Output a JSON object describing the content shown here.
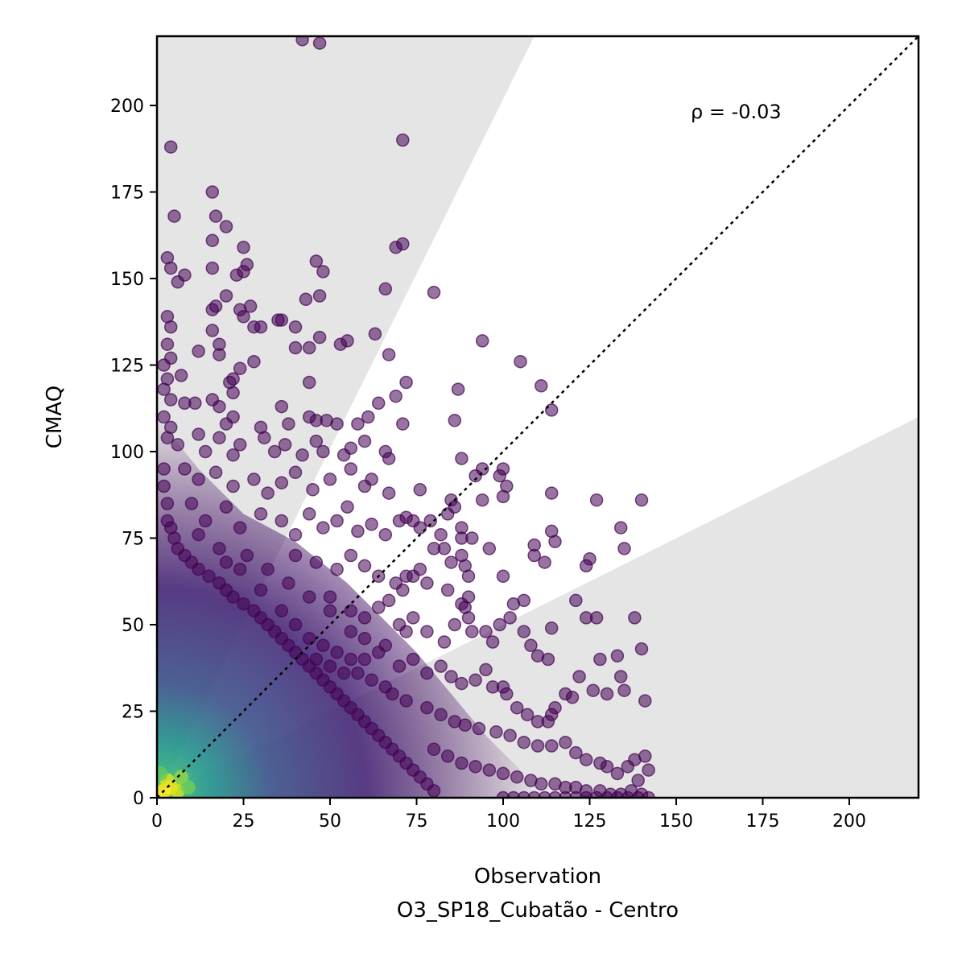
{
  "chart_data": {
    "type": "scatter",
    "title": "",
    "xlabel": "Observation",
    "xlabel_sub": "O3_SP18_Cubatão - Centro",
    "ylabel": "CMAQ",
    "xlim": [
      0,
      220
    ],
    "ylim": [
      0,
      220
    ],
    "x_ticks": [
      0,
      25,
      50,
      75,
      100,
      125,
      150,
      175,
      200
    ],
    "y_ticks": [
      0,
      25,
      50,
      75,
      100,
      125,
      150,
      175,
      200
    ],
    "x_tick_labels": [
      "0",
      "25",
      "50",
      "75",
      "100",
      "125",
      "150",
      "175",
      "200"
    ],
    "y_tick_labels": [
      "0",
      "25",
      "50",
      "75",
      "100",
      "125",
      "150",
      "175",
      "200"
    ],
    "annotation": "ρ = -0.03",
    "identity_line": {
      "style": "dotted",
      "color": "#000000"
    },
    "shaded_regions": {
      "upper_wedge_edge_point": [
        109,
        220
      ],
      "lower_wedge_edge_point": [
        220,
        110
      ],
      "color": "#e5e5e5"
    },
    "colors": {
      "sparse_point": "#440154",
      "dense_core": "#fde725",
      "shade": "#e5e5e5"
    },
    "points": [
      [
        42,
        219
      ],
      [
        47,
        218
      ],
      [
        4,
        188
      ],
      [
        71,
        190
      ],
      [
        5,
        168
      ],
      [
        16,
        175
      ],
      [
        17,
        168
      ],
      [
        20,
        165
      ],
      [
        3,
        156
      ],
      [
        4,
        153
      ],
      [
        6,
        149
      ],
      [
        8,
        151
      ],
      [
        16,
        161
      ],
      [
        16,
        153
      ],
      [
        25,
        152
      ],
      [
        25,
        159
      ],
      [
        26,
        154
      ],
      [
        23,
        151
      ],
      [
        46,
        155
      ],
      [
        48,
        152
      ],
      [
        47,
        145
      ],
      [
        69,
        159
      ],
      [
        71,
        160
      ],
      [
        66,
        147
      ],
      [
        80,
        146
      ],
      [
        3,
        139
      ],
      [
        4,
        136
      ],
      [
        16,
        141
      ],
      [
        17,
        142
      ],
      [
        20,
        145
      ],
      [
        24,
        141
      ],
      [
        25,
        139
      ],
      [
        27,
        142
      ],
      [
        28,
        136
      ],
      [
        30,
        136
      ],
      [
        35,
        138
      ],
      [
        36,
        138
      ],
      [
        43,
        144
      ],
      [
        40,
        136
      ],
      [
        44,
        130
      ],
      [
        40,
        130
      ],
      [
        47,
        133
      ],
      [
        53,
        131
      ],
      [
        55,
        132
      ],
      [
        63,
        134
      ],
      [
        94,
        132
      ],
      [
        3,
        131
      ],
      [
        4,
        127
      ],
      [
        7,
        122
      ],
      [
        12,
        129
      ],
      [
        16,
        135
      ],
      [
        18,
        131
      ],
      [
        18,
        128
      ],
      [
        22,
        121
      ],
      [
        24,
        124
      ],
      [
        21,
        120
      ],
      [
        22,
        117
      ],
      [
        28,
        126
      ],
      [
        44,
        120
      ],
      [
        67,
        128
      ],
      [
        72,
        120
      ],
      [
        105,
        126
      ],
      [
        111,
        119
      ],
      [
        87,
        118
      ],
      [
        114,
        112
      ],
      [
        69,
        116
      ],
      [
        64,
        114
      ],
      [
        2,
        125
      ],
      [
        3,
        121
      ],
      [
        2,
        118
      ],
      [
        4,
        115
      ],
      [
        2,
        110
      ],
      [
        4,
        107
      ],
      [
        8,
        114
      ],
      [
        11,
        114
      ],
      [
        16,
        115
      ],
      [
        18,
        113
      ],
      [
        20,
        108
      ],
      [
        22,
        110
      ],
      [
        30,
        107
      ],
      [
        36,
        113
      ],
      [
        38,
        108
      ],
      [
        44,
        110
      ],
      [
        46,
        109
      ],
      [
        49,
        109
      ],
      [
        52,
        108
      ],
      [
        58,
        108
      ],
      [
        61,
        110
      ],
      [
        71,
        108
      ],
      [
        86,
        109
      ],
      [
        3,
        104
      ],
      [
        6,
        102
      ],
      [
        12,
        105
      ],
      [
        14,
        100
      ],
      [
        18,
        104
      ],
      [
        22,
        99
      ],
      [
        24,
        102
      ],
      [
        31,
        104
      ],
      [
        34,
        100
      ],
      [
        37,
        102
      ],
      [
        42,
        99
      ],
      [
        46,
        103
      ],
      [
        48,
        100
      ],
      [
        54,
        99
      ],
      [
        56,
        101
      ],
      [
        60,
        103
      ],
      [
        66,
        100
      ],
      [
        67,
        98
      ],
      [
        88,
        98
      ],
      [
        94,
        95
      ],
      [
        100,
        95
      ],
      [
        92,
        93
      ],
      [
        99,
        93
      ],
      [
        101,
        90
      ],
      [
        100,
        87
      ],
      [
        8,
        95
      ],
      [
        12,
        92
      ],
      [
        17,
        94
      ],
      [
        22,
        90
      ],
      [
        28,
        92
      ],
      [
        32,
        88
      ],
      [
        36,
        91
      ],
      [
        40,
        94
      ],
      [
        45,
        89
      ],
      [
        50,
        92
      ],
      [
        56,
        95
      ],
      [
        60,
        90
      ],
      [
        62,
        92
      ],
      [
        67,
        88
      ],
      [
        76,
        89
      ],
      [
        85,
        86
      ],
      [
        86,
        84
      ],
      [
        84,
        82
      ],
      [
        88,
        78
      ],
      [
        94,
        86
      ],
      [
        88,
        75
      ],
      [
        10,
        85
      ],
      [
        14,
        80
      ],
      [
        20,
        84
      ],
      [
        24,
        78
      ],
      [
        30,
        82
      ],
      [
        36,
        80
      ],
      [
        40,
        76
      ],
      [
        44,
        82
      ],
      [
        48,
        78
      ],
      [
        52,
        80
      ],
      [
        55,
        84
      ],
      [
        58,
        77
      ],
      [
        62,
        79
      ],
      [
        66,
        76
      ],
      [
        70,
        80
      ],
      [
        72,
        81
      ],
      [
        74,
        80
      ],
      [
        76,
        78
      ],
      [
        79,
        80
      ],
      [
        82,
        76
      ],
      [
        80,
        72
      ],
      [
        83,
        72
      ],
      [
        91,
        75
      ],
      [
        96,
        72
      ],
      [
        109,
        73
      ],
      [
        109,
        70
      ],
      [
        112,
        68
      ],
      [
        114,
        77
      ],
      [
        115,
        74
      ],
      [
        125,
        69
      ],
      [
        124,
        67
      ],
      [
        134,
        78
      ],
      [
        135,
        72
      ],
      [
        140,
        86
      ],
      [
        127,
        86
      ],
      [
        114,
        88
      ],
      [
        40,
        70
      ],
      [
        46,
        68
      ],
      [
        52,
        66
      ],
      [
        56,
        70
      ],
      [
        60,
        67
      ],
      [
        64,
        64
      ],
      [
        69,
        62
      ],
      [
        72,
        64
      ],
      [
        74,
        64
      ],
      [
        71,
        60
      ],
      [
        76,
        66
      ],
      [
        78,
        62
      ],
      [
        85,
        68
      ],
      [
        88,
        70
      ],
      [
        89,
        67
      ],
      [
        90,
        64
      ],
      [
        100,
        64
      ],
      [
        88,
        56
      ],
      [
        84,
        60
      ],
      [
        90,
        58
      ],
      [
        50,
        58
      ],
      [
        56,
        54
      ],
      [
        60,
        52
      ],
      [
        64,
        55
      ],
      [
        67,
        57
      ],
      [
        70,
        50
      ],
      [
        72,
        48
      ],
      [
        74,
        52
      ],
      [
        78,
        48
      ],
      [
        83,
        45
      ],
      [
        86,
        50
      ],
      [
        89,
        55
      ],
      [
        90,
        52
      ],
      [
        91,
        48
      ],
      [
        95,
        48
      ],
      [
        97,
        45
      ],
      [
        99,
        50
      ],
      [
        102,
        52
      ],
      [
        103,
        56
      ],
      [
        106,
        57
      ],
      [
        110,
        41
      ],
      [
        113,
        40
      ],
      [
        108,
        44
      ],
      [
        106,
        48
      ],
      [
        114,
        49
      ],
      [
        121,
        57
      ],
      [
        124,
        52
      ],
      [
        127,
        52
      ],
      [
        128,
        40
      ],
      [
        133,
        41
      ],
      [
        134,
        35
      ],
      [
        138,
        52
      ],
      [
        140,
        43
      ],
      [
        60,
        40
      ],
      [
        64,
        42
      ],
      [
        70,
        38
      ],
      [
        74,
        40
      ],
      [
        78,
        36
      ],
      [
        82,
        38
      ],
      [
        85,
        35
      ],
      [
        88,
        33
      ],
      [
        92,
        34
      ],
      [
        95,
        37
      ],
      [
        97,
        32
      ],
      [
        100,
        32
      ],
      [
        101,
        30
      ],
      [
        104,
        26
      ],
      [
        107,
        24
      ],
      [
        110,
        22
      ],
      [
        113,
        22
      ],
      [
        115,
        26
      ],
      [
        118,
        30
      ],
      [
        120,
        29
      ],
      [
        122,
        35
      ],
      [
        126,
        31
      ],
      [
        130,
        30
      ],
      [
        135,
        31
      ],
      [
        141,
        28
      ],
      [
        114,
        24
      ],
      [
        72,
        28
      ],
      [
        78,
        26
      ],
      [
        82,
        24
      ],
      [
        86,
        22
      ],
      [
        89,
        21
      ],
      [
        93,
        20
      ],
      [
        98,
        19
      ],
      [
        102,
        18
      ],
      [
        106,
        16
      ],
      [
        110,
        15
      ],
      [
        114,
        15
      ],
      [
        118,
        16
      ],
      [
        121,
        13
      ],
      [
        124,
        11
      ],
      [
        128,
        10
      ],
      [
        130,
        9
      ],
      [
        133,
        7
      ],
      [
        136,
        9
      ],
      [
        138,
        11
      ],
      [
        141,
        12
      ],
      [
        142,
        8
      ],
      [
        139,
        5
      ],
      [
        80,
        14
      ],
      [
        84,
        12
      ],
      [
        88,
        10
      ],
      [
        92,
        9
      ],
      [
        96,
        8
      ],
      [
        100,
        7
      ],
      [
        104,
        6
      ],
      [
        108,
        5
      ],
      [
        111,
        4
      ],
      [
        115,
        4
      ],
      [
        118,
        3
      ],
      [
        121,
        3
      ],
      [
        124,
        2
      ],
      [
        128,
        2
      ],
      [
        131,
        1
      ],
      [
        134,
        1
      ],
      [
        137,
        2
      ],
      [
        140,
        1
      ],
      [
        142,
        0
      ],
      [
        139,
        0
      ],
      [
        136,
        0
      ],
      [
        133,
        0
      ],
      [
        130,
        0
      ],
      [
        127,
        0
      ],
      [
        124,
        0
      ],
      [
        121,
        0
      ],
      [
        118,
        0
      ],
      [
        115,
        0
      ],
      [
        112,
        0
      ],
      [
        109,
        0
      ],
      [
        106,
        0
      ],
      [
        103,
        0
      ],
      [
        100,
        0
      ],
      [
        2,
        95
      ],
      [
        2,
        90
      ],
      [
        3,
        85
      ],
      [
        3,
        80
      ],
      [
        4,
        78
      ],
      [
        5,
        75
      ],
      [
        6,
        72
      ],
      [
        8,
        70
      ],
      [
        10,
        68
      ],
      [
        12,
        66
      ],
      [
        15,
        64
      ],
      [
        18,
        62
      ],
      [
        20,
        60
      ],
      [
        22,
        58
      ],
      [
        25,
        56
      ],
      [
        28,
        54
      ],
      [
        30,
        52
      ],
      [
        32,
        50
      ],
      [
        34,
        48
      ],
      [
        36,
        46
      ],
      [
        38,
        44
      ],
      [
        40,
        42
      ],
      [
        42,
        40
      ],
      [
        44,
        38
      ],
      [
        46,
        36
      ],
      [
        48,
        34
      ],
      [
        50,
        32
      ],
      [
        52,
        30
      ],
      [
        54,
        28
      ],
      [
        56,
        26
      ],
      [
        58,
        24
      ],
      [
        60,
        22
      ],
      [
        62,
        20
      ],
      [
        64,
        18
      ],
      [
        66,
        16
      ],
      [
        68,
        14
      ],
      [
        70,
        12
      ],
      [
        72,
        10
      ],
      [
        74,
        8
      ],
      [
        76,
        6
      ],
      [
        78,
        4
      ],
      [
        80,
        2
      ],
      [
        12,
        76
      ],
      [
        18,
        72
      ],
      [
        26,
        70
      ],
      [
        32,
        66
      ],
      [
        38,
        62
      ],
      [
        44,
        58
      ],
      [
        50,
        54
      ],
      [
        56,
        48
      ],
      [
        60,
        46
      ],
      [
        66,
        44
      ],
      [
        44,
        46
      ],
      [
        48,
        44
      ],
      [
        52,
        42
      ],
      [
        56,
        40
      ],
      [
        40,
        50
      ],
      [
        36,
        54
      ],
      [
        30,
        60
      ],
      [
        24,
        66
      ],
      [
        20,
        68
      ],
      [
        58,
        36
      ],
      [
        62,
        34
      ],
      [
        66,
        32
      ],
      [
        68,
        30
      ],
      [
        54,
        36
      ],
      [
        50,
        38
      ],
      [
        46,
        40
      ]
    ],
    "density_note": "dense overlapping cloud near origin, color intensity increases toward (0,0)"
  }
}
